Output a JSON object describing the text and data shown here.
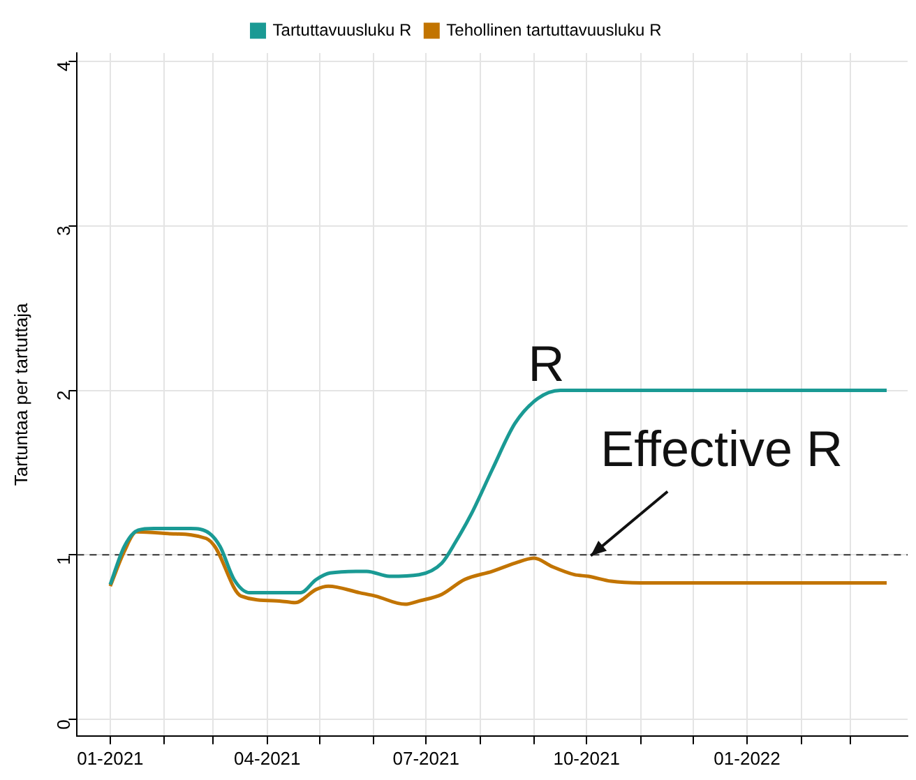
{
  "chart_data": {
    "type": "line",
    "ylabel": "Tartuntaa per tartuttaja",
    "xlim": [
      "2020-12-13",
      "2022-04-03"
    ],
    "xticks": [
      {
        "value": "2021-01-01",
        "label": "01-2021"
      },
      {
        "value": "2021-02-01",
        "label": null
      },
      {
        "value": "2021-03-01",
        "label": null
      },
      {
        "value": "2021-04-01",
        "label": "04-2021"
      },
      {
        "value": "2021-05-01",
        "label": null
      },
      {
        "value": "2021-06-01",
        "label": null
      },
      {
        "value": "2021-07-01",
        "label": "07-2021"
      },
      {
        "value": "2021-08-01",
        "label": null
      },
      {
        "value": "2021-09-01",
        "label": null
      },
      {
        "value": "2021-10-01",
        "label": "10-2021"
      },
      {
        "value": "2021-11-01",
        "label": null
      },
      {
        "value": "2021-12-01",
        "label": null
      },
      {
        "value": "2022-01-01",
        "label": "01-2022"
      },
      {
        "value": "2022-02-01",
        "label": null
      },
      {
        "value": "2022-03-01",
        "label": null
      }
    ],
    "ylim": [
      -0.1,
      4.05
    ],
    "yticks": [
      0,
      1,
      2,
      3,
      4
    ],
    "grid": true,
    "legend": "top",
    "marker": "none",
    "line_style": "solid",
    "series": [
      {
        "name": "Tartuttavuusluku R",
        "color": "#1a9a94",
        "x": [
          "2021-01-01",
          "2021-01-09",
          "2021-01-17",
          "2021-01-26",
          "2021-02-16",
          "2021-02-27",
          "2021-03-05",
          "2021-03-13",
          "2021-03-22",
          "2021-04-20",
          "2021-04-29",
          "2021-05-07",
          "2021-05-28",
          "2021-06-10",
          "2021-06-27",
          "2021-07-10",
          "2021-07-18",
          "2021-07-27",
          "2021-08-08",
          "2021-08-21",
          "2021-09-03",
          "2021-09-16",
          "2022-03-22"
        ],
        "values": [
          0.82,
          1.05,
          1.15,
          1.16,
          1.16,
          1.13,
          1.05,
          0.85,
          0.77,
          0.77,
          0.85,
          0.89,
          0.9,
          0.87,
          0.88,
          0.95,
          1.08,
          1.25,
          1.52,
          1.8,
          1.95,
          2.0,
          2.0
        ]
      },
      {
        "name": "Tehollinen tartuttavuusluku R",
        "color": "#c27400",
        "x": [
          "2021-01-01",
          "2021-01-09",
          "2021-01-16",
          "2021-02-03",
          "2021-02-25",
          "2021-03-02",
          "2021-03-17",
          "2021-04-08",
          "2021-04-17",
          "2021-04-29",
          "2021-05-06",
          "2021-05-24",
          "2021-06-02",
          "2021-06-19",
          "2021-06-27",
          "2021-07-10",
          "2021-07-23",
          "2021-08-08",
          "2021-08-21",
          "2021-09-01",
          "2021-09-11",
          "2021-09-24",
          "2021-10-02",
          "2021-10-15",
          "2021-11-01",
          "2022-03-22"
        ],
        "values": [
          0.81,
          1.02,
          1.14,
          1.13,
          1.1,
          1.05,
          0.75,
          0.72,
          0.71,
          0.79,
          0.81,
          0.77,
          0.75,
          0.7,
          0.72,
          0.76,
          0.85,
          0.9,
          0.95,
          0.98,
          0.93,
          0.88,
          0.87,
          0.84,
          0.83,
          0.83
        ]
      }
    ],
    "ref_lines": [
      {
        "axis": "y",
        "value": 1,
        "line_style": "dashed",
        "color": "#333333"
      }
    ],
    "annotations": [
      "R",
      {
        "text": "Effective R",
        "x": "2021-10-01",
        "y": 0.97
      }
    ]
  }
}
